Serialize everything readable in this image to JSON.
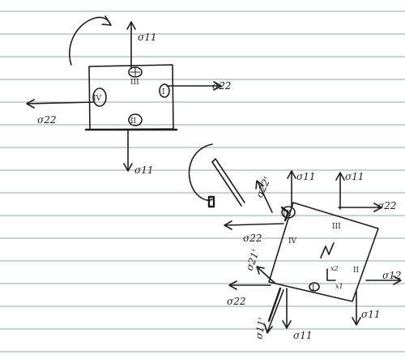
{
  "colors": {
    "paper": "#ffffff",
    "ink": "#1d1d1d",
    "rule": "#9aa0a6"
  },
  "diagram1": {
    "sigma11_top": "σ11",
    "sigma22_right": "σ22",
    "sigma22_left": "σ22",
    "sigma11_bottom": "σ11",
    "region_III": "III",
    "region_I": "I",
    "region_IV": "IV",
    "region_II": "II"
  },
  "diagram2": {
    "sigma22_prime": "σ22'",
    "sigma11_top_a": "σ11",
    "sigma11_top_b": "σ11",
    "sigma22_right": "σ22",
    "sigma22_left_upper": "σ22",
    "sigma21_prime": "σ21'",
    "sigma22_left_lower": "σ22",
    "sigma11_prime_bottom": "σ11'",
    "sigma11_bottom": "σ11",
    "sigma11_right_bottom": "σ11",
    "sigma12_right": "σ12",
    "region_III_top": "III",
    "region_III_right": "III",
    "region_IV": "IV",
    "region_II": "II",
    "region_I": "I",
    "axis_x2": "x2",
    "axis_x1": "x1"
  }
}
